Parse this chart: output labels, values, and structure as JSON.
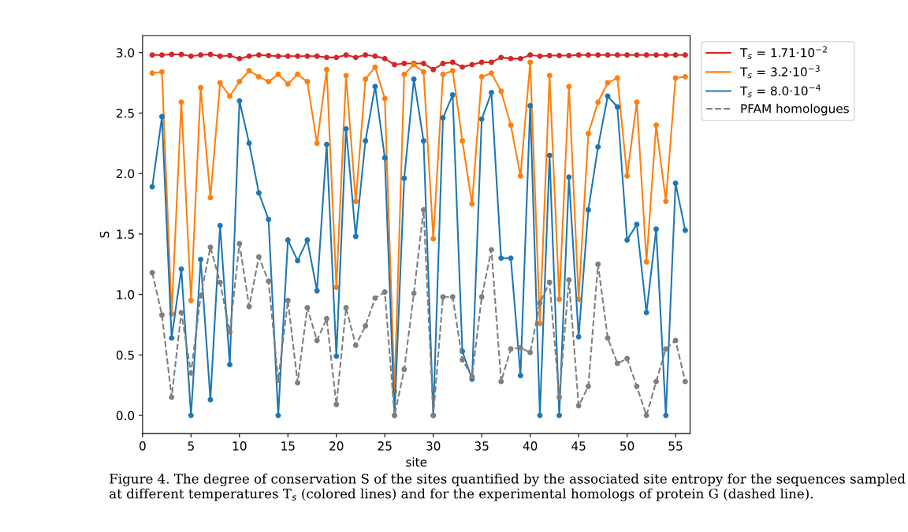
{
  "chart_data": {
    "type": "line",
    "xlabel": "site",
    "ylabel": "S",
    "x": [
      1,
      2,
      3,
      4,
      5,
      6,
      7,
      8,
      9,
      10,
      11,
      12,
      13,
      14,
      15,
      16,
      17,
      18,
      19,
      20,
      21,
      22,
      23,
      24,
      25,
      26,
      27,
      28,
      29,
      30,
      31,
      32,
      33,
      34,
      35,
      36,
      37,
      38,
      39,
      40,
      41,
      42,
      43,
      44,
      45,
      46,
      47,
      48,
      49,
      50,
      51,
      52,
      53,
      54,
      55,
      56
    ],
    "series": [
      {
        "name": "T$_{s}$ = 1.71·10$^{−2}$",
        "color": "#d62728",
        "line_style": "solid",
        "values": [
          2.98,
          2.98,
          2.985,
          2.985,
          2.97,
          2.98,
          2.985,
          2.97,
          2.975,
          2.95,
          2.97,
          2.98,
          2.975,
          2.97,
          2.97,
          2.97,
          2.97,
          2.97,
          2.96,
          2.96,
          2.98,
          2.96,
          2.98,
          2.97,
          2.95,
          2.9,
          2.91,
          2.91,
          2.91,
          2.86,
          2.91,
          2.92,
          2.88,
          2.9,
          2.92,
          2.92,
          2.96,
          2.95,
          2.95,
          2.98,
          2.97,
          2.975,
          2.975,
          2.975,
          2.98,
          2.98,
          2.98,
          2.98,
          2.98,
          2.98,
          2.98,
          2.98,
          2.98,
          2.98,
          2.98,
          2.98
        ]
      },
      {
        "name": "T$_{s}$ = 3.2·10$^{−3}$",
        "color": "#ff7f0e",
        "line_style": "solid",
        "values": [
          2.83,
          2.84,
          0.84,
          2.59,
          0.95,
          2.71,
          1.8,
          2.75,
          2.64,
          2.76,
          2.85,
          2.8,
          2.76,
          2.82,
          2.74,
          2.82,
          2.76,
          2.25,
          2.86,
          1.06,
          2.81,
          1.77,
          2.78,
          2.88,
          2.62,
          0.2,
          2.82,
          2.9,
          2.84,
          1.46,
          2.82,
          2.85,
          2.27,
          1.75,
          2.8,
          2.83,
          2.68,
          2.4,
          1.98,
          2.92,
          0.76,
          2.81,
          0.96,
          2.72,
          0.96,
          2.33,
          2.59,
          2.75,
          2.79,
          1.98,
          2.59,
          1.27,
          2.4,
          1.77,
          2.79,
          2.8
        ]
      },
      {
        "name": "T$_{s}$ = 8.0·10$^{−4}$",
        "color": "#1f77b4",
        "line_style": "solid",
        "values": [
          1.89,
          2.47,
          0.64,
          1.21,
          0.0,
          1.29,
          0.13,
          1.57,
          0.42,
          2.6,
          2.25,
          1.84,
          1.62,
          0.0,
          1.45,
          1.28,
          1.45,
          1.03,
          2.24,
          0.49,
          2.37,
          1.48,
          2.27,
          2.72,
          2.13,
          0.0,
          1.96,
          2.78,
          2.27,
          0.0,
          2.46,
          2.65,
          0.53,
          0.3,
          2.45,
          2.67,
          1.3,
          1.3,
          0.33,
          2.56,
          0.0,
          2.15,
          0.0,
          1.97,
          0.65,
          1.7,
          2.22,
          2.64,
          2.55,
          1.45,
          1.58,
          0.85,
          1.54,
          0.0,
          1.92,
          1.53
        ]
      },
      {
        "name": "PFAM homologues",
        "color": "#7f7f7f",
        "line_style": "dashed",
        "values": [
          1.18,
          0.83,
          0.15,
          0.85,
          0.35,
          0.99,
          1.39,
          1.1,
          0.69,
          1.42,
          0.9,
          1.31,
          1.11,
          0.29,
          0.95,
          0.27,
          0.89,
          0.62,
          0.8,
          0.09,
          0.89,
          0.58,
          0.74,
          0.97,
          1.02,
          0.0,
          0.38,
          1.01,
          1.7,
          0.0,
          0.98,
          0.98,
          0.46,
          0.32,
          0.98,
          1.37,
          0.28,
          0.55,
          0.56,
          0.52,
          0.93,
          1.1,
          0.15,
          1.12,
          0.08,
          0.24,
          1.25,
          0.64,
          0.43,
          0.47,
          0.24,
          0.0,
          0.28,
          0.55,
          0.62,
          0.28
        ]
      }
    ],
    "xlim": [
      0,
      56.5
    ],
    "xticks": [
      0,
      5,
      10,
      15,
      20,
      25,
      30,
      35,
      40,
      45,
      50,
      55
    ],
    "ylim": [
      -0.15,
      3.14
    ],
    "yticks": [
      {
        "value": 0,
        "label": "0.0"
      },
      {
        "value": 0.5,
        "label": "0.5"
      },
      {
        "value": 1,
        "label": "1.0"
      },
      {
        "value": 1.5,
        "label": "1.5"
      },
      {
        "value": 2,
        "label": "2.0"
      },
      {
        "value": 2.5,
        "label": "2.5"
      },
      {
        "value": 3,
        "label": "3.0"
      }
    ],
    "marker": "circle",
    "grid": false,
    "legend": "right",
    "annotations": [
      "Figure 4. The degree of conservation S of the sites quantified by the associated site entropy for the sequences sampled at different temperatures T$_{s}$ (colored lines) and for the experimental homologs of protein G (dashed line)."
    ]
  }
}
